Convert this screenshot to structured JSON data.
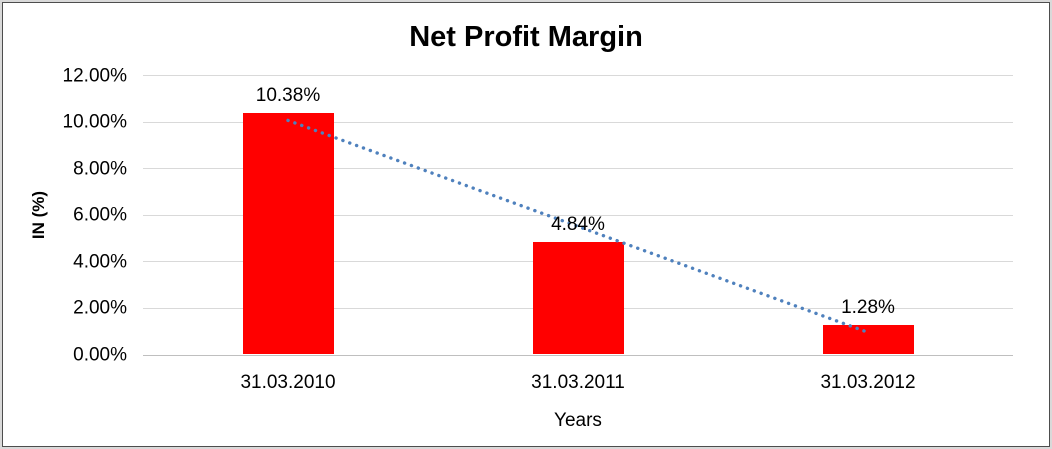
{
  "frame": {
    "outer_background": "#d9d9d9",
    "border_color": "#4d4d4d",
    "chart_background": "#ffffff"
  },
  "chart_data": {
    "type": "bar",
    "title": "Net Profit Margin",
    "xlabel": "Years",
    "ylabel": "IN (%)",
    "categories": [
      "31.03.2010",
      "31.03.2011",
      "31.03.2012"
    ],
    "series": [
      {
        "name": "Net Profit Margin",
        "values": [
          10.38,
          4.84,
          1.28
        ],
        "color": "#ff0000"
      }
    ],
    "data_labels": [
      "10.38%",
      "4.84%",
      "1.28%"
    ],
    "ylim": [
      0,
      12
    ],
    "ytick_step": 2,
    "yticks": [
      "12.00%",
      "10.00%",
      "8.00%",
      "6.00%",
      "4.00%",
      "2.00%",
      "0.00%"
    ],
    "grid": true,
    "gridline_color": "#d9d9d9",
    "axisline_color": "#bfbfbf",
    "legend": "none",
    "trendline": {
      "type": "linear",
      "style": "dotted",
      "color": "#4f81bd"
    }
  }
}
